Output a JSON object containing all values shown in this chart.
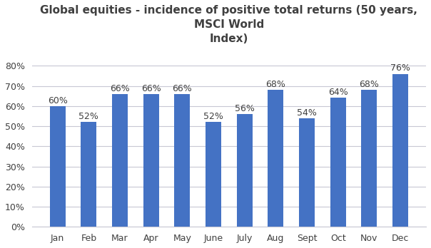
{
  "title": "Global equities - incidence of positive total returns (50 years,\nMSCI World\nIndex)",
  "categories": [
    "Jan",
    "Feb",
    "Mar",
    "Apr",
    "May",
    "June",
    "July",
    "Aug",
    "Sept",
    "Oct",
    "Nov",
    "Dec"
  ],
  "values": [
    0.6,
    0.52,
    0.66,
    0.66,
    0.66,
    0.52,
    0.56,
    0.68,
    0.54,
    0.64,
    0.68,
    0.76
  ],
  "bar_color": "#4472C4",
  "background_color": "#ffffff",
  "title_color": "#404040",
  "ylim": [
    0,
    0.88
  ],
  "yticks": [
    0,
    0.1,
    0.2,
    0.3,
    0.4,
    0.5,
    0.6,
    0.7,
    0.8
  ],
  "title_fontsize": 11,
  "tick_fontsize": 9,
  "annotation_fontsize": 9,
  "bar_width": 0.5,
  "grid_color": "#C8C8D4",
  "figsize": [
    6.04,
    3.48
  ],
  "dpi": 100
}
